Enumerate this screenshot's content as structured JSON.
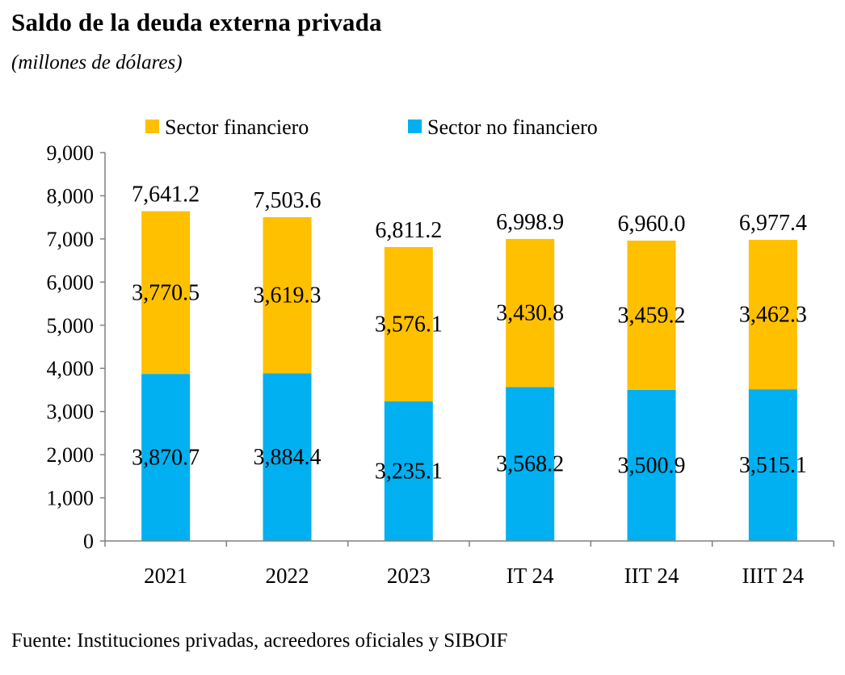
{
  "title": "Saldo de la deuda externa privada",
  "subtitle": "(millones de dólares)",
  "source": "Fuente: Instituciones privadas, acreedores oficiales y SIBOIF",
  "colors": {
    "sector_financiero": "#FFC000",
    "sector_no_financiero": "#00B0F0",
    "axis": "#808080"
  },
  "chart_data": {
    "type": "bar",
    "stacked": true,
    "categories": [
      "2021",
      "2022",
      "2023",
      "IT 24",
      "IIT 24",
      "IIIT 24"
    ],
    "series": [
      {
        "name": "Sector no financiero",
        "color": "#00B0F0",
        "values": [
          3870.7,
          3884.4,
          3235.1,
          3568.2,
          3500.9,
          3515.1
        ],
        "labels": [
          "3,870.7",
          "3,884.4",
          "3,235.1",
          "3,568.2",
          "3,500.9",
          "3,515.1"
        ]
      },
      {
        "name": "Sector financiero",
        "color": "#FFC000",
        "values": [
          3770.5,
          3619.3,
          3576.1,
          3430.8,
          3459.2,
          3462.3
        ],
        "labels": [
          "3,770.5",
          "3,619.3",
          "3,576.1",
          "3,430.8",
          "3,459.2",
          "3,462.3"
        ]
      }
    ],
    "totals": [
      7641.2,
      7503.6,
      6811.2,
      6998.9,
      6960.0,
      6977.4
    ],
    "total_labels": [
      "7,641.2",
      "7,503.6",
      "6,811.2",
      "6,998.9",
      "6,960.0",
      "6,977.4"
    ],
    "ylim": [
      0,
      9000
    ],
    "yticks": [
      0,
      1000,
      2000,
      3000,
      4000,
      5000,
      6000,
      7000,
      8000,
      9000
    ],
    "ytick_labels": [
      "0",
      "1,000",
      "2,000",
      "3,000",
      "4,000",
      "5,000",
      "6,000",
      "7,000",
      "8,000",
      "9,000"
    ],
    "legend": {
      "position": "top",
      "entries": [
        "Sector financiero",
        "Sector no financiero"
      ]
    },
    "grid": false
  }
}
